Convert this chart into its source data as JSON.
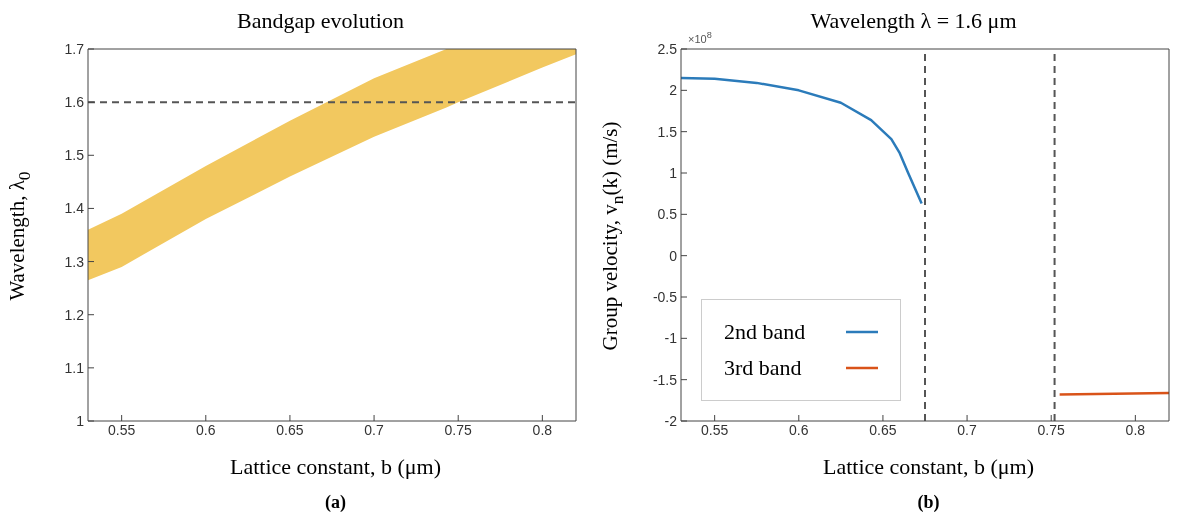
{
  "chart_data": [
    {
      "type": "area",
      "title": "Bandgap evolution",
      "xlabel": "Lattice constant, b (μm)",
      "ylabel": "Wavelength, λ$_{0}$",
      "xlim": [
        0.53,
        0.82
      ],
      "xticks": [
        0.55,
        0.6,
        0.65,
        0.7,
        0.75,
        0.8
      ],
      "ylim": [
        1,
        1.7
      ],
      "yticks": [
        1,
        1.1,
        1.2,
        1.3,
        1.4,
        1.5,
        1.6,
        1.7
      ],
      "series": [
        {
          "color": "#f2c85f",
          "x": [
            0.53,
            0.55,
            0.6,
            0.65,
            0.7,
            0.743,
            0.75,
            0.8,
            0.82
          ],
          "values": [
            null,
            null,
            null,
            null,
            null,
            null,
            null,
            null,
            null
          ],
          "lower": [
            1.265,
            1.29,
            1.38,
            1.46,
            1.535,
            1.59,
            1.6,
            1.665,
            1.69
          ],
          "upper": [
            1.36,
            1.39,
            1.48,
            1.565,
            1.645,
            1.7,
            1.7,
            1.7,
            1.7
          ]
        }
      ],
      "ref_lines": [
        {
          "axis": "y",
          "value": 1.6,
          "color": "#555555",
          "line_style": "dashed"
        }
      ],
      "grid": false,
      "legend": false,
      "annotations": [
        "(a)"
      ]
    },
    {
      "type": "line",
      "title": "Wavelength  λ = 1.6 μm",
      "xlabel": "Lattice constant, b (μm)",
      "ylabel": "Group velocity, v$_{n}$(k)  (m/s)",
      "xlim": [
        0.53,
        0.82
      ],
      "xticks": [
        0.55,
        0.6,
        0.65,
        0.7,
        0.75,
        0.8
      ],
      "ylim": [
        -2,
        2.5
      ],
      "yticks": [
        -2,
        -1.5,
        -1,
        -0.5,
        0,
        0.5,
        1,
        1.5,
        2,
        2.5
      ],
      "series": [
        {
          "name": "2nd band",
          "color": "#2b7bba",
          "x": [
            0.53,
            0.55,
            0.575,
            0.6,
            0.625,
            0.643,
            0.655,
            0.66,
            0.665,
            0.673
          ],
          "values": [
            2.15,
            2.14,
            2.09,
            2.0,
            1.85,
            1.64,
            1.41,
            1.24,
            1.0,
            0.63
          ]
        },
        {
          "name": "3rd band",
          "color": "#d95319",
          "x": [
            0.755,
            0.82
          ],
          "values": [
            -1.68,
            -1.66
          ]
        }
      ],
      "ref_lines": [
        {
          "axis": "x",
          "value": 0.675,
          "color": "#555555",
          "line_style": "dashed"
        },
        {
          "axis": "x",
          "value": 0.752,
          "color": "#555555",
          "line_style": "dashed"
        }
      ],
      "grid": false,
      "legend": "bottom left",
      "marker": "none",
      "line_style": "solid",
      "annotations": [
        "×10$^{8}$",
        "(b)"
      ]
    }
  ]
}
